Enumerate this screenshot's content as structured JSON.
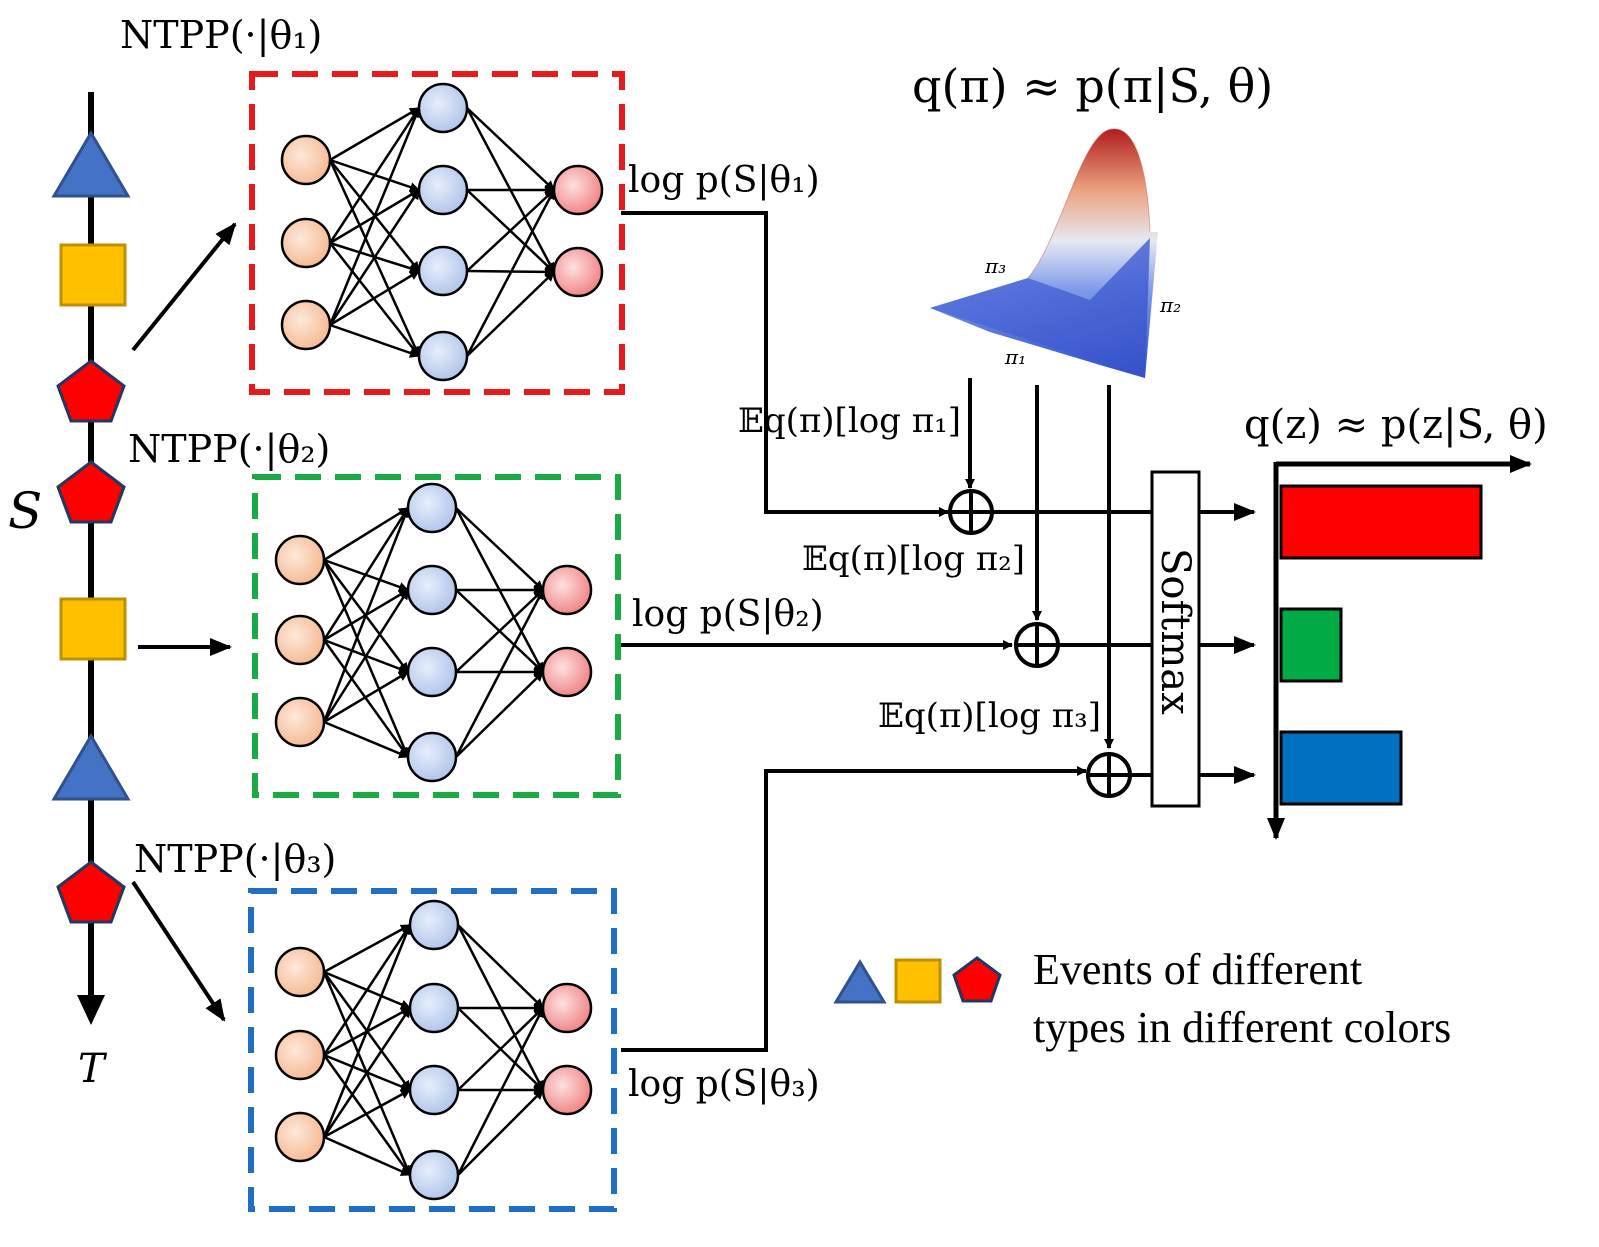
{
  "timeline": {
    "sequence_label": "S",
    "time_label": "T",
    "events": [
      "triangle",
      "square",
      "pentagon",
      "pentagon",
      "square",
      "triangle",
      "pentagon"
    ]
  },
  "models": [
    {
      "label": "NTPP(·|θ₁)",
      "log_likelihood": "log p(S|θ₁)",
      "box_color": "#e41a1c"
    },
    {
      "label": "NTPP(·|θ₂)",
      "log_likelihood": "log p(S|θ₂)",
      "box_color": "#1aaa44"
    },
    {
      "label": "NTPP(·|θ₃)",
      "log_likelihood": "log p(S|θ₃)",
      "box_color": "#1f6fc5"
    }
  ],
  "posterior_pi": {
    "title": "q(π) ≈ p(π|S, θ)",
    "axes": [
      "π₁",
      "π₂",
      "π₃"
    ]
  },
  "expectations": [
    "𝔼q(π)[log π₁]",
    "𝔼q(π)[log π₂]",
    "𝔼q(π)[log π₃]"
  ],
  "softmax_label": "Softmax",
  "posterior_z": {
    "title": "q(z) ≈ p(z|S, θ)",
    "bars": [
      {
        "value": 1.0,
        "color": "#ff0000"
      },
      {
        "value": 0.3,
        "color": "#00aa44"
      },
      {
        "value": 0.6,
        "color": "#0070c0"
      }
    ]
  },
  "legend": {
    "line1": "Events of different",
    "line2": "types in different colors"
  },
  "colors": {
    "triangle": "#4472c4",
    "square": "#ffc000",
    "pentagon": "#ff0000",
    "input_node": "#f8cbad",
    "hidden_node": "#c5d5f0",
    "output_node": "#f4a0a0"
  }
}
